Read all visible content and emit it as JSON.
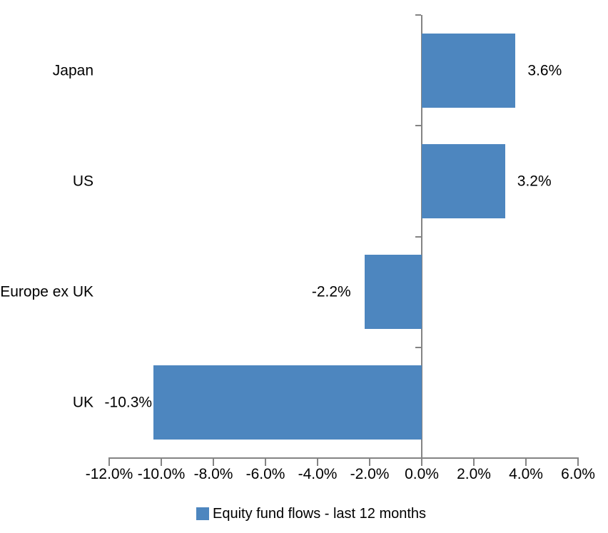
{
  "chart_data": {
    "type": "bar",
    "orientation": "horizontal",
    "categories": [
      "Japan",
      "US",
      "Europe ex UK",
      "UK"
    ],
    "series": [
      {
        "name": "Equity fund flows - last 12 months",
        "values": [
          3.6,
          3.2,
          -2.2,
          -10.3
        ]
      }
    ],
    "data_labels": [
      "3.6%",
      "3.2%",
      "-2.2%",
      "-10.3%"
    ],
    "xlim": [
      -12,
      6
    ],
    "tick_step": 2,
    "x_tick_labels": [
      "-12.0%",
      "-10.0%",
      "-8.0%",
      "-6.0%",
      "-4.0%",
      "-2.0%",
      "0.0%",
      "2.0%",
      "4.0%",
      "6.0%"
    ],
    "grid": false,
    "legend": {
      "label": "Equity fund flows - last 12 months",
      "position": "bottom"
    },
    "colors": {
      "bar": "#4D86BF",
      "axis": "#848484",
      "text": "#000000",
      "background": "#FFFFFF"
    }
  }
}
